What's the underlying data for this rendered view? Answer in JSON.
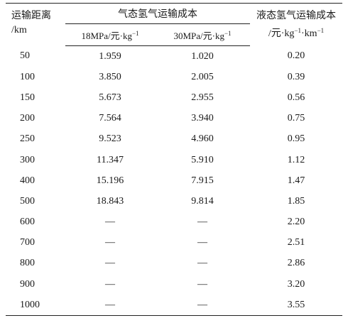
{
  "table": {
    "headers": {
      "distance_line1": "运输距离",
      "distance_line2": "/km",
      "gas_group": "气态氢气运输成本",
      "gas_18_prefix": "18MPa/元·kg",
      "gas_30_prefix": "30MPa/元·kg",
      "liquid_line1": "液态氢气运输成本",
      "liquid_line2_prefix": "/元·kg",
      "liquid_mid": "·km",
      "exponent": "−1"
    },
    "rows": [
      {
        "distance": "50",
        "gas18": "1.959",
        "gas30": "1.020",
        "liquid": "0.20"
      },
      {
        "distance": "100",
        "gas18": "3.850",
        "gas30": "2.005",
        "liquid": "0.39"
      },
      {
        "distance": "150",
        "gas18": "5.673",
        "gas30": "2.955",
        "liquid": "0.56"
      },
      {
        "distance": "200",
        "gas18": "7.564",
        "gas30": "3.940",
        "liquid": "0.75"
      },
      {
        "distance": "250",
        "gas18": "9.523",
        "gas30": "4.960",
        "liquid": "0.95"
      },
      {
        "distance": "300",
        "gas18": "11.347",
        "gas30": "5.910",
        "liquid": "1.12"
      },
      {
        "distance": "400",
        "gas18": "15.196",
        "gas30": "7.915",
        "liquid": "1.47"
      },
      {
        "distance": "500",
        "gas18": "18.843",
        "gas30": "9.814",
        "liquid": "1.85"
      },
      {
        "distance": "600",
        "gas18": "—",
        "gas30": "—",
        "liquid": "2.20"
      },
      {
        "distance": "700",
        "gas18": "—",
        "gas30": "—",
        "liquid": "2.51"
      },
      {
        "distance": "800",
        "gas18": "—",
        "gas30": "—",
        "liquid": "2.86"
      },
      {
        "distance": "900",
        "gas18": "—",
        "gas30": "—",
        "liquid": "3.20"
      },
      {
        "distance": "1000",
        "gas18": "—",
        "gas30": "—",
        "liquid": "3.55"
      }
    ]
  }
}
